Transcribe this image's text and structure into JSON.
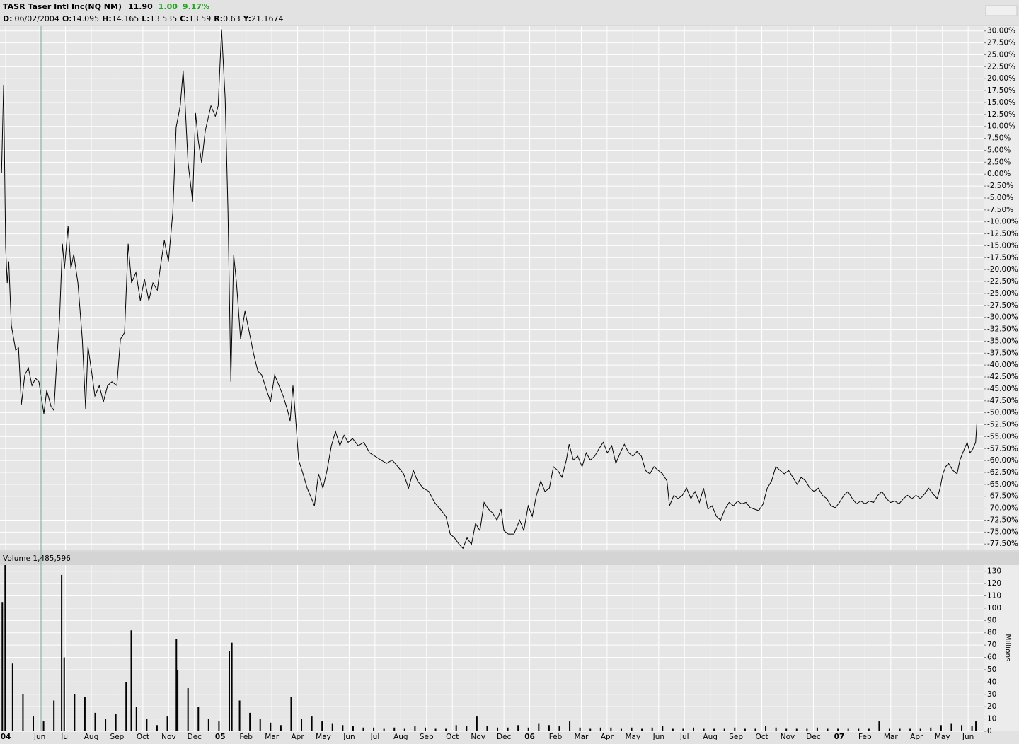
{
  "header": {
    "title": "TASR Taser Intl Inc(NQ NM)",
    "last": "11.90",
    "change": "1.00",
    "change_pct": "9.17%",
    "ohlc": [
      {
        "label": "D:",
        "value": "06/02/2004"
      },
      {
        "label": "O:",
        "value": "14.095"
      },
      {
        "label": "H:",
        "value": "14.165"
      },
      {
        "label": "L:",
        "value": "13.535"
      },
      {
        "label": "C:",
        "value": "13.59"
      },
      {
        "label": "R:",
        "value": "0.63"
      },
      {
        "label": "Y:",
        "value": "21.1674"
      }
    ]
  },
  "chart_data": [
    {
      "type": "line",
      "color": "#000000",
      "grid": true,
      "xlim": [
        -0.54,
        37.6
      ],
      "ylim": [
        -78.8,
        31
      ],
      "yticks": [
        {
          "value": 30,
          "label": "30.00%"
        },
        {
          "value": 27.5,
          "label": "27.50%"
        },
        {
          "value": 25,
          "label": "25.00%"
        },
        {
          "value": 22.5,
          "label": "22.50%"
        },
        {
          "value": 20,
          "label": "20.00%"
        },
        {
          "value": 17.5,
          "label": "17.50%"
        },
        {
          "value": 15,
          "label": "15.00%"
        },
        {
          "value": 12.5,
          "label": "12.50%"
        },
        {
          "value": 10,
          "label": "10.00%"
        },
        {
          "value": 7.5,
          "label": "7.50%"
        },
        {
          "value": 5,
          "label": "5.00%"
        },
        {
          "value": 2.5,
          "label": "2.50%"
        },
        {
          "value": 0,
          "label": "0.00%"
        },
        {
          "value": -2.5,
          "label": "-2.50%"
        },
        {
          "value": -5,
          "label": "-5.00%"
        },
        {
          "value": -7.5,
          "label": "-7.50%"
        },
        {
          "value": -10,
          "label": "-10.00%"
        },
        {
          "value": -12.5,
          "label": "-12.50%"
        },
        {
          "value": -15,
          "label": "-15.00%"
        },
        {
          "value": -17.5,
          "label": "-17.50%"
        },
        {
          "value": -20,
          "label": "-20.00%"
        },
        {
          "value": -22.5,
          "label": "-22.50%"
        },
        {
          "value": -25,
          "label": "-25.00%"
        },
        {
          "value": -27.5,
          "label": "-27.50%"
        },
        {
          "value": -30,
          "label": "-30.00%"
        },
        {
          "value": -32.5,
          "label": "-32.50%"
        },
        {
          "value": -35,
          "label": "-35.00%"
        },
        {
          "value": -37.5,
          "label": "-37.50%"
        },
        {
          "value": -40,
          "label": "-40.00%"
        },
        {
          "value": -42.5,
          "label": "-42.50%"
        },
        {
          "value": -45,
          "label": "-45.00%"
        },
        {
          "value": -47.5,
          "label": "-47.50%"
        },
        {
          "value": -50,
          "label": "-50.00%"
        },
        {
          "value": -52.5,
          "label": "-52.50%"
        },
        {
          "value": -55,
          "label": "-55.00%"
        },
        {
          "value": -57.5,
          "label": "-57.50%"
        },
        {
          "value": -60,
          "label": "-60.00%"
        },
        {
          "value": -62.5,
          "label": "-62.50%"
        },
        {
          "value": -65,
          "label": "-65.00%"
        },
        {
          "value": -67.5,
          "label": "-67.50%"
        },
        {
          "value": -70,
          "label": "-70.00%"
        },
        {
          "value": -72.5,
          "label": "-72.50%"
        },
        {
          "value": -75,
          "label": "-75.00%"
        },
        {
          "value": -77.5,
          "label": "-77.50%"
        }
      ],
      "x": [
        -0.48,
        -0.4,
        -0.32,
        -0.26,
        -0.2,
        -0.1,
        0.07,
        0.18,
        0.29,
        0.42,
        0.56,
        0.7,
        0.84,
        0.97,
        1.16,
        1.27,
        1.44,
        1.55,
        1.66,
        1.77,
        1.88,
        1.96,
        2.1,
        2.21,
        2.32,
        2.48,
        2.65,
        2.78,
        2.87,
        3.03,
        3.14,
        3.31,
        3.47,
        3.63,
        3.8,
        3.99,
        4.13,
        4.29,
        4.43,
        4.56,
        4.73,
        4.9,
        5.06,
        5.23,
        5.39,
        5.56,
        5.67,
        5.83,
        5.99,
        6.16,
        6.29,
        6.45,
        6.56,
        6.64,
        6.75,
        6.93,
        7.04,
        7.15,
        7.28,
        7.42,
        7.64,
        7.81,
        7.92,
        8.05,
        8.19,
        8.3,
        8.41,
        8.52,
        8.63,
        8.79,
        8.96,
        9.13,
        9.29,
        9.46,
        9.61,
        9.78,
        9.95,
        10.11,
        10.28,
        10.44,
        10.61,
        10.71,
        10.82,
        10.93,
        11.04,
        11.21,
        11.37,
        11.54,
        11.65,
        11.81,
        11.98,
        12.14,
        12.31,
        12.47,
        12.64,
        12.8,
        12.96,
        13.13,
        13.35,
        13.57,
        13.79,
        14.0,
        14.23,
        14.45,
        14.67,
        14.89,
        15.11,
        15.3,
        15.49,
        15.65,
        15.87,
        16.09,
        16.31,
        16.53,
        16.75,
        16.92,
        17.08,
        17.24,
        17.41,
        17.57,
        17.74,
        17.9,
        18.07,
        18.23,
        18.4,
        18.56,
        18.73,
        18.89,
        19.0,
        19.17,
        19.39,
        19.61,
        19.77,
        19.94,
        20.1,
        20.26,
        20.43,
        20.59,
        20.76,
        20.92,
        21.09,
        21.25,
        21.42,
        21.53,
        21.69,
        21.86,
        22.03,
        22.19,
        22.35,
        22.52,
        22.68,
        22.85,
        23.01,
        23.18,
        23.34,
        23.51,
        23.67,
        23.84,
        24.0,
        24.16,
        24.33,
        24.49,
        24.66,
        24.82,
        24.99,
        25.15,
        25.32,
        25.42,
        25.59,
        25.75,
        25.92,
        26.08,
        26.25,
        26.41,
        26.58,
        26.74,
        26.91,
        27.07,
        27.24,
        27.4,
        27.57,
        27.73,
        27.9,
        28.06,
        28.22,
        28.39,
        28.55,
        28.72,
        28.88,
        29.05,
        29.21,
        29.38,
        29.54,
        29.71,
        29.87,
        30.04,
        30.2,
        30.37,
        30.53,
        30.7,
        30.86,
        31.03,
        31.19,
        31.35,
        31.52,
        31.68,
        31.85,
        32.01,
        32.18,
        32.34,
        32.51,
        32.67,
        32.84,
        33.0,
        33.17,
        33.33,
        33.5,
        33.66,
        33.83,
        33.99,
        34.16,
        34.32,
        34.49,
        34.65,
        34.82,
        34.98,
        35.15,
        35.31,
        35.47,
        35.64,
        35.8,
        35.91,
        36.02,
        36.13,
        36.24,
        36.41,
        36.57,
        36.68,
        36.79,
        36.96,
        37.07,
        37.18,
        37.29,
        37.34
      ],
      "values": [
        0.2,
        18.7,
        -15.4,
        -22.8,
        -18.3,
        -31.7,
        -36.9,
        -36.4,
        -48.3,
        -42.1,
        -40.6,
        -44.3,
        -42.8,
        -43.5,
        -50.2,
        -45.3,
        -48.7,
        -49.5,
        -39.1,
        -30.2,
        -14.6,
        -19.8,
        -10.9,
        -19.8,
        -16.8,
        -22.8,
        -34.6,
        -49.2,
        -36.1,
        -42.1,
        -46.5,
        -44.3,
        -47.7,
        -44.3,
        -43.5,
        -44.3,
        -34.6,
        -33.2,
        -14.6,
        -22.8,
        -20.6,
        -26.5,
        -22.0,
        -26.5,
        -22.8,
        -24.3,
        -19.8,
        -13.9,
        -18.3,
        -8.0,
        9.8,
        14.3,
        21.7,
        14.3,
        2.4,
        -5.7,
        12.8,
        6.9,
        2.4,
        9.1,
        14.3,
        12.1,
        14.3,
        30.3,
        15.8,
        -8.0,
        -43.5,
        -16.9,
        -22.8,
        -34.6,
        -28.7,
        -33.2,
        -37.6,
        -41.3,
        -42.1,
        -45.0,
        -47.7,
        -42.1,
        -44.3,
        -46.5,
        -49.5,
        -51.7,
        -44.3,
        -51.7,
        -59.9,
        -62.8,
        -65.8,
        -68.0,
        -69.5,
        -62.8,
        -65.8,
        -62.1,
        -56.9,
        -53.9,
        -56.9,
        -54.7,
        -56.2,
        -55.4,
        -56.9,
        -56.2,
        -58.4,
        -59.1,
        -59.9,
        -60.6,
        -59.9,
        -61.3,
        -62.8,
        -65.8,
        -62.1,
        -64.3,
        -65.8,
        -66.5,
        -68.8,
        -70.2,
        -71.7,
        -75.4,
        -76.2,
        -77.4,
        -78.4,
        -76.2,
        -77.6,
        -73.2,
        -74.7,
        -68.8,
        -70.2,
        -71.0,
        -72.5,
        -70.2,
        -74.7,
        -75.4,
        -75.4,
        -72.5,
        -74.7,
        -69.5,
        -71.7,
        -67.3,
        -64.3,
        -66.5,
        -65.8,
        -61.3,
        -62.1,
        -63.5,
        -59.9,
        -56.6,
        -59.9,
        -59.1,
        -61.3,
        -58.4,
        -59.9,
        -59.1,
        -57.6,
        -56.2,
        -58.4,
        -56.9,
        -60.6,
        -58.4,
        -56.6,
        -58.4,
        -59.1,
        -58.1,
        -59.1,
        -62.1,
        -62.8,
        -61.3,
        -62.1,
        -62.8,
        -64.3,
        -69.5,
        -67.3,
        -68.0,
        -67.3,
        -65.8,
        -68.0,
        -66.5,
        -68.8,
        -65.8,
        -70.2,
        -69.5,
        -71.7,
        -72.5,
        -70.2,
        -68.8,
        -69.5,
        -68.5,
        -69.1,
        -68.8,
        -69.9,
        -70.2,
        -70.5,
        -69.1,
        -65.8,
        -64.3,
        -61.3,
        -62.1,
        -62.8,
        -62.1,
        -63.5,
        -65.0,
        -63.5,
        -64.3,
        -65.8,
        -66.5,
        -65.8,
        -67.3,
        -68.0,
        -69.5,
        -69.9,
        -68.8,
        -67.3,
        -66.5,
        -68.0,
        -69.1,
        -68.5,
        -69.1,
        -68.5,
        -68.8,
        -67.3,
        -66.5,
        -68.0,
        -68.8,
        -68.5,
        -69.1,
        -68.0,
        -67.3,
        -68.0,
        -67.3,
        -68.0,
        -67.0,
        -65.8,
        -67.0,
        -68.0,
        -65.8,
        -62.8,
        -61.3,
        -60.6,
        -62.1,
        -62.8,
        -59.9,
        -58.4,
        -56.2,
        -58.4,
        -57.6,
        -56.2,
        -52.1
      ]
    },
    {
      "type": "bar",
      "title": "Volume 1,485,596",
      "y_label": "Millions",
      "color": "#000000",
      "grid": true,
      "xlim": [
        -0.54,
        37.6
      ],
      "ylim": [
        0,
        135
      ],
      "yticks": [
        0,
        10,
        20,
        30,
        40,
        50,
        60,
        70,
        80,
        90,
        100,
        110,
        120,
        130
      ],
      "xticks": [
        {
          "value": -0.32,
          "label": "04"
        },
        {
          "value": 1,
          "label": "Jun"
        },
        {
          "value": 2,
          "label": "Jul"
        },
        {
          "value": 3,
          "label": "Aug"
        },
        {
          "value": 4,
          "label": "Sep"
        },
        {
          "value": 5,
          "label": "Oct"
        },
        {
          "value": 6,
          "label": "Nov"
        },
        {
          "value": 7,
          "label": "Dec"
        },
        {
          "value": 8,
          "label": "05"
        },
        {
          "value": 9,
          "label": "Feb"
        },
        {
          "value": 10,
          "label": "Mar"
        },
        {
          "value": 11,
          "label": "Apr"
        },
        {
          "value": 12,
          "label": "May"
        },
        {
          "value": 13,
          "label": "Jun"
        },
        {
          "value": 14,
          "label": "Jul"
        },
        {
          "value": 15,
          "label": "Aug"
        },
        {
          "value": 16,
          "label": "Sep"
        },
        {
          "value": 17,
          "label": "Oct"
        },
        {
          "value": 18,
          "label": "Nov"
        },
        {
          "value": 19,
          "label": "Dec"
        },
        {
          "value": 20,
          "label": "06"
        },
        {
          "value": 21,
          "label": "Feb"
        },
        {
          "value": 22,
          "label": "Mar"
        },
        {
          "value": 23,
          "label": "Apr"
        },
        {
          "value": 24,
          "label": "May"
        },
        {
          "value": 25,
          "label": "Jun"
        },
        {
          "value": 26,
          "label": "Jul"
        },
        {
          "value": 27,
          "label": "Aug"
        },
        {
          "value": 28,
          "label": "Sep"
        },
        {
          "value": 29,
          "label": "Oct"
        },
        {
          "value": 30,
          "label": "Nov"
        },
        {
          "value": 31,
          "label": "Dec"
        },
        {
          "value": 32,
          "label": "07"
        },
        {
          "value": 33,
          "label": "Feb"
        },
        {
          "value": 34,
          "label": "Mar"
        },
        {
          "value": 35,
          "label": "Apr"
        },
        {
          "value": 36,
          "label": "May"
        },
        {
          "value": 37,
          "label": "Jun"
        }
      ],
      "x": [
        -0.45,
        -0.34,
        -0.05,
        0.35,
        0.75,
        1.15,
        1.55,
        1.85,
        1.95,
        2.35,
        2.75,
        3.15,
        3.55,
        3.95,
        4.35,
        4.55,
        4.75,
        5.15,
        5.55,
        5.95,
        6.3,
        6.35,
        6.75,
        7.15,
        7.55,
        7.95,
        8.35,
        8.45,
        8.75,
        9.15,
        9.55,
        9.95,
        10.35,
        10.75,
        11.15,
        11.55,
        11.95,
        12.35,
        12.75,
        13.15,
        13.55,
        13.95,
        14.35,
        14.75,
        15.15,
        15.55,
        15.95,
        16.35,
        16.75,
        17.15,
        17.55,
        17.95,
        18.35,
        18.75,
        19.15,
        19.55,
        19.95,
        20.35,
        20.75,
        21.15,
        21.55,
        21.95,
        22.35,
        22.75,
        23.15,
        23.55,
        23.95,
        24.35,
        24.75,
        25.15,
        25.55,
        25.95,
        26.35,
        26.75,
        27.15,
        27.55,
        27.95,
        28.35,
        28.75,
        29.15,
        29.55,
        29.95,
        30.35,
        30.75,
        31.15,
        31.55,
        31.95,
        32.35,
        32.75,
        33.15,
        33.55,
        33.95,
        34.35,
        34.75,
        35.15,
        35.55,
        35.95,
        36.35,
        36.75,
        37.15,
        37.3
      ],
      "values": [
        105,
        135,
        55,
        30,
        12,
        8,
        25,
        127,
        60,
        30,
        28,
        15,
        10,
        14,
        40,
        82,
        20,
        10,
        5,
        12,
        75,
        50,
        35,
        20,
        10,
        8,
        65,
        72,
        25,
        15,
        10,
        7,
        5,
        28,
        10,
        12,
        8,
        6,
        5,
        4,
        3,
        3,
        2,
        3,
        2,
        4,
        3,
        2,
        2,
        5,
        4,
        12,
        4,
        3,
        3,
        5,
        3,
        6,
        5,
        4,
        8,
        3,
        2,
        3,
        3,
        2,
        3,
        2,
        3,
        4,
        2,
        2,
        3,
        2,
        2,
        2,
        3,
        2,
        2,
        4,
        3,
        2,
        2,
        2,
        3,
        2,
        2,
        2,
        2,
        2,
        8,
        2,
        2,
        2,
        2,
        3,
        5,
        6,
        5,
        4,
        8
      ]
    }
  ]
}
